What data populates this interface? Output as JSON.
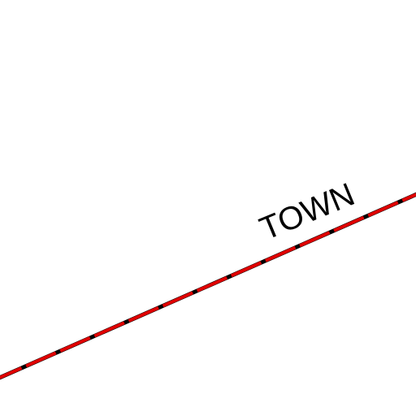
{
  "map": {
    "boundary": {
      "label": "TOWN",
      "color": "#e00000",
      "casing_color": "#000000"
    }
  }
}
